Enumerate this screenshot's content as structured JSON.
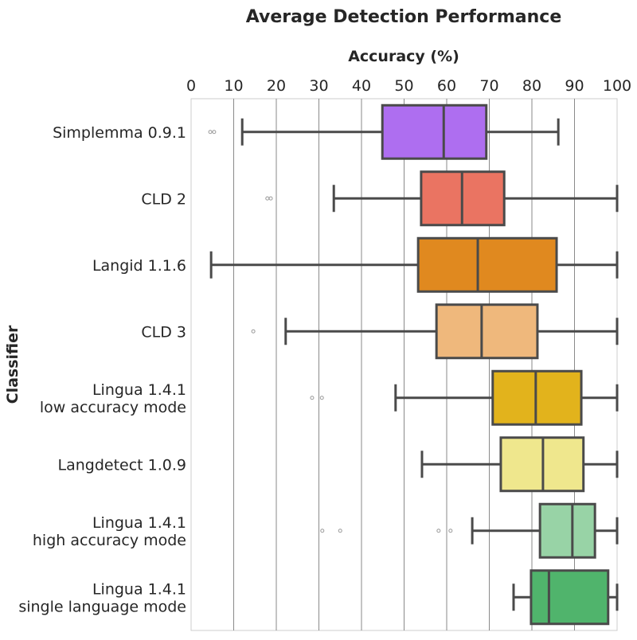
{
  "chart_data": {
    "type": "boxplot",
    "orientation": "horizontal",
    "title": "Average Detection Performance",
    "xlabel": "Accuracy (%)",
    "ylabel": "Classifier",
    "xlim": [
      0,
      100
    ],
    "xticks": [
      0,
      10,
      20,
      30,
      40,
      50,
      60,
      70,
      80,
      90,
      100
    ],
    "x_axis_position": "top",
    "grid": "vertical",
    "categories": [
      {
        "label": [
          "Simplemma 0.9.1"
        ],
        "color": "#ae6ef0",
        "whislo": 12.0,
        "q1": 44.9,
        "med": 59.3,
        "q3": 69.3,
        "whishi": 86.2,
        "fliers": [
          4.5,
          5.4
        ]
      },
      {
        "label": [
          "CLD 2"
        ],
        "color": "#ea7462",
        "whislo": 33.5,
        "q1": 54.0,
        "med": 63.6,
        "q3": 73.5,
        "whishi": 100,
        "fliers": [
          17.9,
          18.7
        ]
      },
      {
        "label": [
          "Langid 1.1.6"
        ],
        "color": "#e0891f",
        "whislo": 4.7,
        "q1": 53.3,
        "med": 67.3,
        "q3": 85.8,
        "whishi": 100,
        "fliers": []
      },
      {
        "label": [
          "CLD 3"
        ],
        "color": "#efb87c",
        "whislo": 22.2,
        "q1": 57.6,
        "med": 68.2,
        "q3": 81.3,
        "whishi": 100,
        "fliers": [
          14.6
        ]
      },
      {
        "label": [
          "Lingua 1.4.1",
          "low accuracy mode"
        ],
        "color": "#e2b31c",
        "whislo": 48.0,
        "q1": 70.8,
        "med": 80.9,
        "q3": 91.6,
        "whishi": 100,
        "fliers": [
          28.4,
          30.7
        ]
      },
      {
        "label": [
          "Langdetect 1.0.9"
        ],
        "color": "#efe78d",
        "whislo": 54.2,
        "q1": 72.7,
        "med": 82.6,
        "q3": 92.1,
        "whishi": 100,
        "fliers": []
      },
      {
        "label": [
          "Lingua 1.4.1",
          "high accuracy mode"
        ],
        "color": "#98d3a6",
        "whislo": 66.0,
        "q1": 81.9,
        "med": 89.5,
        "q3": 94.8,
        "whishi": 100,
        "fliers": [
          30.8,
          35.0,
          58.1,
          60.9
        ]
      },
      {
        "label": [
          "Lingua 1.4.1",
          "single language mode"
        ],
        "color": "#50b46c",
        "whislo": 75.7,
        "q1": 79.8,
        "med": 84.0,
        "q3": 97.9,
        "whishi": 100,
        "fliers": []
      }
    ]
  }
}
